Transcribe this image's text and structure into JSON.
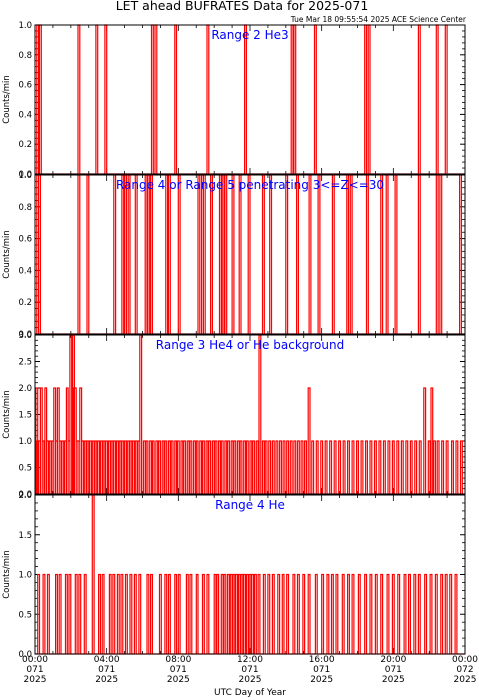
{
  "title": "LET ahead BUFRATES Data for 2025-071",
  "subtitle": "Tue Mar 18 09:55:54 2025 ACE Science Center",
  "xlabel": "UTC Day of Year",
  "colors": {
    "trace": "#ff0000",
    "frame": "#000000",
    "panel_title": "#0000ff",
    "background": "#ffffff"
  },
  "x_ticks": [
    {
      "time": "00:00",
      "doy": "071",
      "year": "2025"
    },
    {
      "time": "04:00",
      "doy": "071",
      "year": "2025"
    },
    {
      "time": "08:00",
      "doy": "071",
      "year": "2025"
    },
    {
      "time": "12:00",
      "doy": "071",
      "year": "2025"
    },
    {
      "time": "16:00",
      "doy": "071",
      "year": "2025"
    },
    {
      "time": "20:00",
      "doy": "071",
      "year": "2025"
    },
    {
      "time": "00:00",
      "doy": "072",
      "year": "2025"
    }
  ],
  "chart_data": [
    {
      "type": "line",
      "title": "Range 2 He3",
      "ylabel": "Counts/min",
      "xlim": [
        0,
        24
      ],
      "ylim": [
        0,
        1.0
      ],
      "yticks": [
        "0.0",
        "0.2",
        "0.4",
        "0.6",
        "0.8",
        "1.0"
      ],
      "spikes": [
        {
          "x": 0.15,
          "y": 1
        },
        {
          "x": 0.3,
          "y": 1
        },
        {
          "x": 2.45,
          "y": 1
        },
        {
          "x": 3.45,
          "y": 1
        },
        {
          "x": 3.95,
          "y": 1
        },
        {
          "x": 6.55,
          "y": 1
        },
        {
          "x": 6.75,
          "y": 1
        },
        {
          "x": 7.85,
          "y": 1
        },
        {
          "x": 9.65,
          "y": 1
        },
        {
          "x": 11.75,
          "y": 1
        },
        {
          "x": 14.35,
          "y": 1
        },
        {
          "x": 14.5,
          "y": 1
        },
        {
          "x": 15.65,
          "y": 1
        },
        {
          "x": 18.45,
          "y": 1
        },
        {
          "x": 18.65,
          "y": 1
        },
        {
          "x": 21.45,
          "y": 1
        },
        {
          "x": 22.45,
          "y": 1
        },
        {
          "x": 22.95,
          "y": 1
        }
      ]
    },
    {
      "type": "line",
      "title": "Range 4 or Range 5 penetrating 3<=Z<=30",
      "ylabel": "Counts/min",
      "xlim": [
        0,
        24
      ],
      "ylim": [
        0,
        1.0
      ],
      "yticks": [
        "0.0",
        "0.2",
        "0.4",
        "0.6",
        "0.8",
        "1.0"
      ],
      "spikes": [
        {
          "x": 0.15,
          "y": 1
        },
        {
          "x": 0.25,
          "y": 1
        },
        {
          "x": 2.45,
          "y": 1
        },
        {
          "x": 2.95,
          "y": 1
        },
        {
          "x": 4.45,
          "y": 1
        },
        {
          "x": 4.9,
          "y": 1
        },
        {
          "x": 5.05,
          "y": 1
        },
        {
          "x": 5.25,
          "y": 1
        },
        {
          "x": 5.65,
          "y": 1
        },
        {
          "x": 6.2,
          "y": 1
        },
        {
          "x": 6.35,
          "y": 1
        },
        {
          "x": 6.5,
          "y": 1
        },
        {
          "x": 7.35,
          "y": 1
        },
        {
          "x": 7.5,
          "y": 1
        },
        {
          "x": 8.05,
          "y": 1
        },
        {
          "x": 9.15,
          "y": 1
        },
        {
          "x": 9.35,
          "y": 1
        },
        {
          "x": 9.45,
          "y": 1
        },
        {
          "x": 9.85,
          "y": 1
        },
        {
          "x": 10.35,
          "y": 1
        },
        {
          "x": 10.5,
          "y": 1
        },
        {
          "x": 10.65,
          "y": 1
        },
        {
          "x": 11.05,
          "y": 1
        },
        {
          "x": 11.45,
          "y": 1
        },
        {
          "x": 11.95,
          "y": 1
        },
        {
          "x": 12.75,
          "y": 1
        },
        {
          "x": 13.15,
          "y": 1
        },
        {
          "x": 14.05,
          "y": 1
        },
        {
          "x": 14.65,
          "y": 1
        },
        {
          "x": 15.35,
          "y": 1
        },
        {
          "x": 15.85,
          "y": 1
        },
        {
          "x": 16.65,
          "y": 1
        },
        {
          "x": 17.45,
          "y": 1
        },
        {
          "x": 17.65,
          "y": 1
        },
        {
          "x": 18.55,
          "y": 1
        },
        {
          "x": 19.35,
          "y": 1
        },
        {
          "x": 19.65,
          "y": 1
        },
        {
          "x": 20.15,
          "y": 1
        },
        {
          "x": 21.45,
          "y": 1
        },
        {
          "x": 22.45,
          "y": 1
        },
        {
          "x": 22.65,
          "y": 1
        },
        {
          "x": 23.75,
          "y": 1
        }
      ]
    },
    {
      "type": "line",
      "title": "Range 3 He4 or He background",
      "ylabel": "Counts/min",
      "xlim": [
        0,
        24
      ],
      "ylim": [
        0,
        3.0
      ],
      "yticks": [
        "0.0",
        "0.5",
        "1.0",
        "1.5",
        "2.0",
        "2.5",
        "3.0"
      ],
      "spikes": [
        {
          "x": 0.1,
          "y": 2
        },
        {
          "x": 0.15,
          "y": 1
        },
        {
          "x": 0.25,
          "y": 1
        },
        {
          "x": 0.35,
          "y": 2
        },
        {
          "x": 0.45,
          "y": 1
        },
        {
          "x": 0.6,
          "y": 2
        },
        {
          "x": 0.7,
          "y": 1
        },
        {
          "x": 0.85,
          "y": 1
        },
        {
          "x": 1.0,
          "y": 1
        },
        {
          "x": 1.1,
          "y": 2
        },
        {
          "x": 1.2,
          "y": 1
        },
        {
          "x": 1.3,
          "y": 2
        },
        {
          "x": 1.4,
          "y": 1
        },
        {
          "x": 1.55,
          "y": 1
        },
        {
          "x": 1.7,
          "y": 1
        },
        {
          "x": 1.8,
          "y": 2
        },
        {
          "x": 1.9,
          "y": 1
        },
        {
          "x": 2.0,
          "y": 3
        },
        {
          "x": 2.1,
          "y": 2
        },
        {
          "x": 2.15,
          "y": 3
        },
        {
          "x": 2.25,
          "y": 2
        },
        {
          "x": 2.35,
          "y": 1
        },
        {
          "x": 2.45,
          "y": 1
        },
        {
          "x": 2.55,
          "y": 2
        },
        {
          "x": 2.65,
          "y": 1
        },
        {
          "x": 2.8,
          "y": 1
        },
        {
          "x": 2.95,
          "y": 1
        },
        {
          "x": 3.1,
          "y": 1
        },
        {
          "x": 3.25,
          "y": 1
        },
        {
          "x": 3.4,
          "y": 1
        },
        {
          "x": 3.55,
          "y": 1
        },
        {
          "x": 3.7,
          "y": 1
        },
        {
          "x": 3.85,
          "y": 1
        },
        {
          "x": 4.0,
          "y": 1
        },
        {
          "x": 4.15,
          "y": 1
        },
        {
          "x": 4.3,
          "y": 1
        },
        {
          "x": 4.45,
          "y": 1
        },
        {
          "x": 4.6,
          "y": 1
        },
        {
          "x": 4.75,
          "y": 1
        },
        {
          "x": 4.9,
          "y": 1
        },
        {
          "x": 5.05,
          "y": 1
        },
        {
          "x": 5.2,
          "y": 1
        },
        {
          "x": 5.35,
          "y": 1
        },
        {
          "x": 5.5,
          "y": 1
        },
        {
          "x": 5.65,
          "y": 1
        },
        {
          "x": 5.8,
          "y": 1
        },
        {
          "x": 5.9,
          "y": 3
        },
        {
          "x": 6.1,
          "y": 1
        },
        {
          "x": 6.25,
          "y": 1
        },
        {
          "x": 6.45,
          "y": 1
        },
        {
          "x": 6.6,
          "y": 1
        },
        {
          "x": 6.8,
          "y": 1
        },
        {
          "x": 6.95,
          "y": 1
        },
        {
          "x": 7.15,
          "y": 1
        },
        {
          "x": 7.3,
          "y": 1
        },
        {
          "x": 7.5,
          "y": 1
        },
        {
          "x": 7.65,
          "y": 1
        },
        {
          "x": 7.85,
          "y": 1
        },
        {
          "x": 8.0,
          "y": 1
        },
        {
          "x": 8.2,
          "y": 1
        },
        {
          "x": 8.35,
          "y": 1
        },
        {
          "x": 8.55,
          "y": 1
        },
        {
          "x": 8.7,
          "y": 1
        },
        {
          "x": 8.9,
          "y": 1
        },
        {
          "x": 9.05,
          "y": 1
        },
        {
          "x": 9.25,
          "y": 1
        },
        {
          "x": 9.4,
          "y": 1
        },
        {
          "x": 9.6,
          "y": 1
        },
        {
          "x": 9.75,
          "y": 1
        },
        {
          "x": 9.95,
          "y": 1
        },
        {
          "x": 10.1,
          "y": 1
        },
        {
          "x": 10.3,
          "y": 1
        },
        {
          "x": 10.45,
          "y": 1
        },
        {
          "x": 10.65,
          "y": 1
        },
        {
          "x": 10.8,
          "y": 1
        },
        {
          "x": 11.0,
          "y": 1
        },
        {
          "x": 11.15,
          "y": 1
        },
        {
          "x": 11.35,
          "y": 1
        },
        {
          "x": 11.5,
          "y": 1
        },
        {
          "x": 11.7,
          "y": 1
        },
        {
          "x": 11.85,
          "y": 1
        },
        {
          "x": 12.05,
          "y": 1
        },
        {
          "x": 12.2,
          "y": 1
        },
        {
          "x": 12.4,
          "y": 1
        },
        {
          "x": 12.55,
          "y": 3
        },
        {
          "x": 12.75,
          "y": 1
        },
        {
          "x": 12.9,
          "y": 1
        },
        {
          "x": 13.1,
          "y": 1
        },
        {
          "x": 13.3,
          "y": 1
        },
        {
          "x": 13.5,
          "y": 1
        },
        {
          "x": 13.7,
          "y": 1
        },
        {
          "x": 13.9,
          "y": 1
        },
        {
          "x": 14.1,
          "y": 1
        },
        {
          "x": 14.3,
          "y": 1
        },
        {
          "x": 14.5,
          "y": 1
        },
        {
          "x": 14.7,
          "y": 1
        },
        {
          "x": 14.9,
          "y": 1
        },
        {
          "x": 15.1,
          "y": 1
        },
        {
          "x": 15.3,
          "y": 2
        },
        {
          "x": 15.5,
          "y": 1
        },
        {
          "x": 15.75,
          "y": 1
        },
        {
          "x": 16.0,
          "y": 1
        },
        {
          "x": 16.25,
          "y": 1
        },
        {
          "x": 16.5,
          "y": 1
        },
        {
          "x": 16.75,
          "y": 1
        },
        {
          "x": 17.0,
          "y": 1
        },
        {
          "x": 17.25,
          "y": 1
        },
        {
          "x": 17.5,
          "y": 1
        },
        {
          "x": 17.75,
          "y": 1
        },
        {
          "x": 18.0,
          "y": 1
        },
        {
          "x": 18.25,
          "y": 1
        },
        {
          "x": 18.5,
          "y": 1
        },
        {
          "x": 18.75,
          "y": 1
        },
        {
          "x": 19.0,
          "y": 1
        },
        {
          "x": 19.25,
          "y": 1
        },
        {
          "x": 19.5,
          "y": 1
        },
        {
          "x": 19.75,
          "y": 1
        },
        {
          "x": 20.0,
          "y": 1
        },
        {
          "x": 20.25,
          "y": 1
        },
        {
          "x": 20.5,
          "y": 1
        },
        {
          "x": 20.75,
          "y": 1
        },
        {
          "x": 21.0,
          "y": 1
        },
        {
          "x": 21.25,
          "y": 1
        },
        {
          "x": 21.5,
          "y": 1
        },
        {
          "x": 21.75,
          "y": 2
        },
        {
          "x": 22.0,
          "y": 1
        },
        {
          "x": 22.15,
          "y": 2
        },
        {
          "x": 22.3,
          "y": 1
        },
        {
          "x": 22.5,
          "y": 1
        },
        {
          "x": 22.75,
          "y": 1
        },
        {
          "x": 23.0,
          "y": 1
        },
        {
          "x": 23.3,
          "y": 1
        },
        {
          "x": 23.55,
          "y": 1
        },
        {
          "x": 23.8,
          "y": 1
        }
      ]
    },
    {
      "type": "line",
      "title": "Range 4 He",
      "ylabel": "Counts/min",
      "xlim": [
        0,
        24
      ],
      "ylim": [
        0,
        2.0
      ],
      "yticks": [
        "0.0",
        "0.5",
        "1.0",
        "1.5",
        "2.0"
      ],
      "spikes": [
        {
          "x": 0.2,
          "y": 1
        },
        {
          "x": 0.5,
          "y": 1
        },
        {
          "x": 0.75,
          "y": 1
        },
        {
          "x": 1.2,
          "y": 1
        },
        {
          "x": 1.4,
          "y": 1
        },
        {
          "x": 1.75,
          "y": 1
        },
        {
          "x": 1.95,
          "y": 1
        },
        {
          "x": 2.3,
          "y": 1
        },
        {
          "x": 2.5,
          "y": 1
        },
        {
          "x": 2.8,
          "y": 1
        },
        {
          "x": 3.25,
          "y": 2
        },
        {
          "x": 3.6,
          "y": 1
        },
        {
          "x": 3.8,
          "y": 1
        },
        {
          "x": 4.2,
          "y": 1
        },
        {
          "x": 4.4,
          "y": 1
        },
        {
          "x": 4.65,
          "y": 1
        },
        {
          "x": 4.85,
          "y": 1
        },
        {
          "x": 5.1,
          "y": 1
        },
        {
          "x": 5.35,
          "y": 1
        },
        {
          "x": 5.6,
          "y": 1
        },
        {
          "x": 5.85,
          "y": 1
        },
        {
          "x": 6.3,
          "y": 1
        },
        {
          "x": 6.5,
          "y": 1
        },
        {
          "x": 7.0,
          "y": 1
        },
        {
          "x": 7.3,
          "y": 1
        },
        {
          "x": 7.5,
          "y": 1
        },
        {
          "x": 7.85,
          "y": 1
        },
        {
          "x": 8.05,
          "y": 1
        },
        {
          "x": 8.5,
          "y": 1
        },
        {
          "x": 8.7,
          "y": 1
        },
        {
          "x": 9.05,
          "y": 1
        },
        {
          "x": 9.4,
          "y": 1
        },
        {
          "x": 9.65,
          "y": 1
        },
        {
          "x": 10.05,
          "y": 1
        },
        {
          "x": 10.2,
          "y": 1
        },
        {
          "x": 10.45,
          "y": 1
        },
        {
          "x": 10.6,
          "y": 1
        },
        {
          "x": 10.8,
          "y": 1
        },
        {
          "x": 10.95,
          "y": 1
        },
        {
          "x": 11.1,
          "y": 1
        },
        {
          "x": 11.25,
          "y": 1
        },
        {
          "x": 11.4,
          "y": 1
        },
        {
          "x": 11.55,
          "y": 1
        },
        {
          "x": 11.7,
          "y": 1
        },
        {
          "x": 11.85,
          "y": 1
        },
        {
          "x": 12.0,
          "y": 1
        },
        {
          "x": 12.15,
          "y": 1
        },
        {
          "x": 12.3,
          "y": 1
        },
        {
          "x": 12.5,
          "y": 1
        },
        {
          "x": 12.8,
          "y": 1
        },
        {
          "x": 13.05,
          "y": 1
        },
        {
          "x": 13.3,
          "y": 1
        },
        {
          "x": 13.6,
          "y": 1
        },
        {
          "x": 13.85,
          "y": 1
        },
        {
          "x": 14.1,
          "y": 1
        },
        {
          "x": 14.45,
          "y": 1
        },
        {
          "x": 14.7,
          "y": 1
        },
        {
          "x": 15.0,
          "y": 1
        },
        {
          "x": 15.3,
          "y": 1
        },
        {
          "x": 15.7,
          "y": 1
        },
        {
          "x": 16.05,
          "y": 1
        },
        {
          "x": 16.35,
          "y": 1
        },
        {
          "x": 16.6,
          "y": 1
        },
        {
          "x": 16.85,
          "y": 1
        },
        {
          "x": 17.2,
          "y": 1
        },
        {
          "x": 17.5,
          "y": 1
        },
        {
          "x": 17.75,
          "y": 1
        },
        {
          "x": 18.1,
          "y": 1
        },
        {
          "x": 18.45,
          "y": 1
        },
        {
          "x": 18.75,
          "y": 1
        },
        {
          "x": 19.05,
          "y": 1
        },
        {
          "x": 19.35,
          "y": 1
        },
        {
          "x": 19.7,
          "y": 1
        },
        {
          "x": 20.0,
          "y": 1
        },
        {
          "x": 20.3,
          "y": 1
        },
        {
          "x": 20.65,
          "y": 1
        },
        {
          "x": 20.9,
          "y": 1
        },
        {
          "x": 21.2,
          "y": 1
        },
        {
          "x": 21.45,
          "y": 1
        },
        {
          "x": 21.8,
          "y": 1
        },
        {
          "x": 22.1,
          "y": 1
        },
        {
          "x": 22.4,
          "y": 1
        },
        {
          "x": 22.7,
          "y": 1
        },
        {
          "x": 22.95,
          "y": 1
        },
        {
          "x": 23.2,
          "y": 1
        },
        {
          "x": 23.5,
          "y": 1
        }
      ]
    }
  ]
}
